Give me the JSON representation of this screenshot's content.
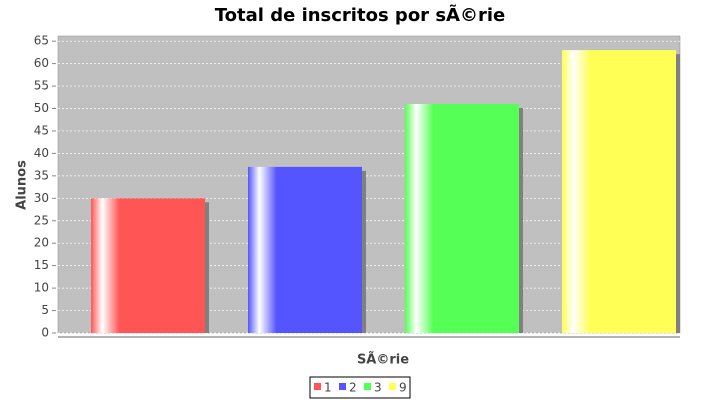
{
  "chart_data": {
    "type": "bar",
    "title": "Total de inscritos por sÃ©rie",
    "x_label": "SÃ©rie",
    "y_label": "Alunos",
    "categories": [
      null
    ],
    "series": [
      {
        "name": "1",
        "color": "#ff5555",
        "values": [
          30
        ]
      },
      {
        "name": "2",
        "color": "#5555ff",
        "values": [
          37
        ]
      },
      {
        "name": "3",
        "color": "#55ff55",
        "values": [
          51
        ]
      },
      {
        "name": "9",
        "color": "#ffff55",
        "values": [
          63
        ]
      }
    ],
    "ylim": [
      0,
      66.15
    ],
    "yticks": [
      0,
      5,
      10,
      15,
      20,
      25,
      30,
      35,
      40,
      45,
      50,
      55,
      60,
      65
    ],
    "grid": true,
    "legend": "bottom"
  }
}
